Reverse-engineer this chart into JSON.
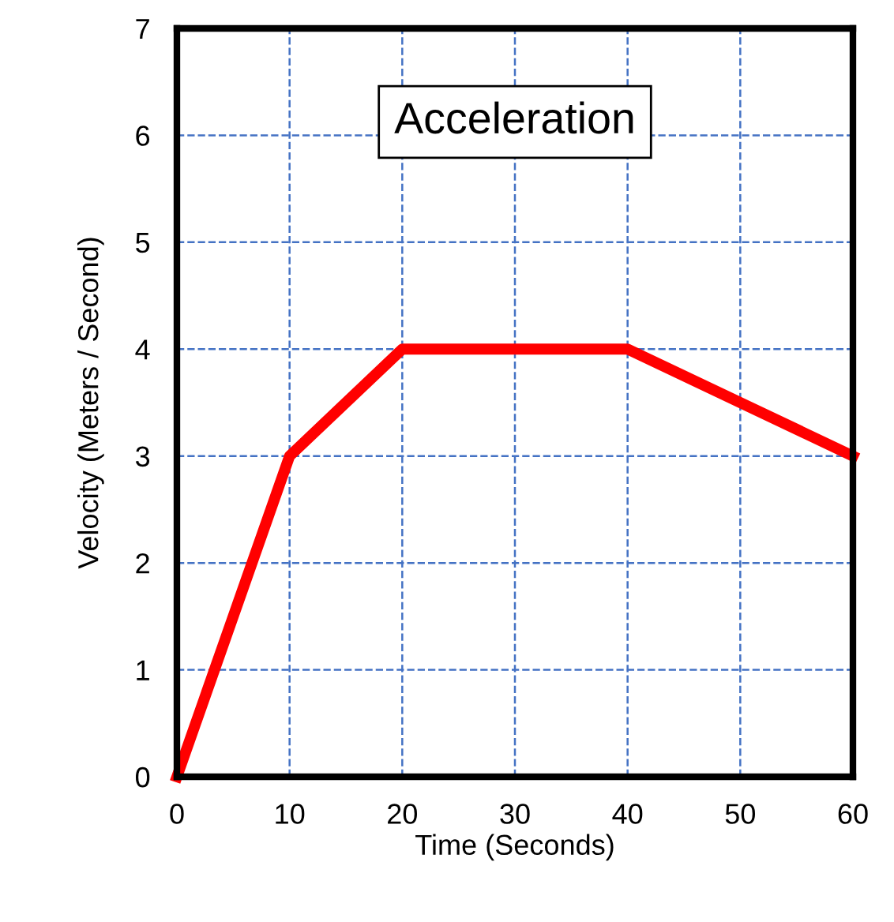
{
  "chart_data": {
    "type": "line",
    "title": "Acceleration",
    "xlabel": "Time (Seconds)",
    "ylabel": "Velocity (Meters / Second)",
    "x": [
      0,
      10,
      20,
      40,
      60
    ],
    "series": [
      {
        "color": "#ff0000",
        "values": [
          0,
          3,
          4,
          4,
          3
        ]
      }
    ],
    "xlim": [
      0,
      60
    ],
    "ylim": [
      0,
      7
    ],
    "xticks": [
      0,
      10,
      20,
      30,
      40,
      50,
      60
    ],
    "yticks": [
      0,
      1,
      2,
      3,
      4,
      5,
      6,
      7
    ],
    "grid": true,
    "marker": "none",
    "line_style": "solid",
    "legend": false
  }
}
